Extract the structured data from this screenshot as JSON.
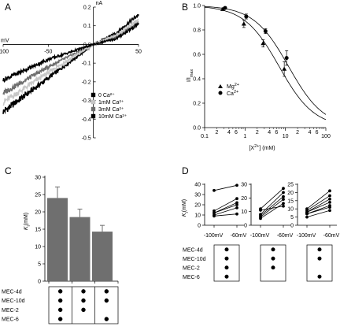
{
  "chart_data": [
    {
      "id": "A",
      "type": "line",
      "panel_label": "A",
      "x_unit": "mV",
      "y_unit": "nA",
      "xlim": [
        -100,
        50
      ],
      "ylim": [
        -0.5,
        0.2
      ],
      "x_ticks": [
        -100,
        -50,
        0,
        50
      ],
      "x_tick_labels": [
        "-100",
        "-50",
        "",
        "50"
      ],
      "y_ticks": [
        0.2,
        0.1,
        0.0,
        -0.1,
        -0.2,
        -0.3,
        -0.4,
        -0.5
      ],
      "y_tick_labels": [
        "0.2",
        "0.1",
        "0.0",
        "-0.1",
        "-0.2",
        "-0.3",
        "-0.4",
        "-0.5"
      ],
      "series": [
        {
          "name": "0 Ca²⁺",
          "color": "#000000",
          "x": [
            -100,
            -50,
            0,
            25,
            50
          ],
          "y": [
            -0.36,
            -0.18,
            0.0,
            0.06,
            0.16
          ]
        },
        {
          "name": "1mM Ca²⁺",
          "color": "#c8c8c8",
          "x": [
            -100,
            -50,
            0,
            25,
            50
          ],
          "y": [
            -0.31,
            -0.15,
            0.0,
            0.05,
            0.13
          ]
        },
        {
          "name": "3mM Ca²⁺",
          "color": "#6e6e6e",
          "x": [
            -100,
            -50,
            0,
            25,
            50
          ],
          "y": [
            -0.26,
            -0.12,
            0.0,
            0.04,
            0.12
          ]
        },
        {
          "name": "10mM Ca²⁺",
          "color": "#000000",
          "x": [
            -100,
            -50,
            0,
            25,
            50
          ],
          "y": [
            -0.19,
            -0.08,
            0.0,
            0.03,
            0.11
          ]
        }
      ]
    },
    {
      "id": "B",
      "type": "scatter",
      "panel_label": "B",
      "ylabel": "I/I",
      "ylabel_sub": "max",
      "xlabel_pre": "[X",
      "xlabel_sup": "2+",
      "xlabel_post": "] (mM)",
      "xscale": "log",
      "xlim": [
        0.1,
        100
      ],
      "ylim": [
        0,
        1.0
      ],
      "x_ticks": [
        0.1,
        1,
        10,
        100
      ],
      "x_tick_labels": [
        "0.1",
        "1",
        "10",
        "100"
      ],
      "minor_tick_labels": [
        {
          "x": 0.2,
          "t": "2"
        },
        {
          "x": 0.4,
          "t": "4"
        },
        {
          "x": 0.6,
          "t": "6"
        },
        {
          "x": 2,
          "t": "2"
        },
        {
          "x": 4,
          "t": "4"
        },
        {
          "x": 6,
          "t": "6"
        },
        {
          "x": 20,
          "t": "2"
        },
        {
          "x": 40,
          "t": "4"
        },
        {
          "x": 60,
          "t": "6"
        }
      ],
      "y_ticks": [
        0,
        0.2,
        0.4,
        0.6,
        0.8,
        1.0
      ],
      "y_tick_labels": [
        "0.0",
        "0.2",
        "0.4",
        "0.6",
        "0.8",
        "1.0"
      ],
      "fits": [
        {
          "ic50": 7,
          "n": 1
        },
        {
          "ic50": 12,
          "n": 1
        }
      ],
      "series": [
        {
          "name": "Mg",
          "sup": "2+",
          "marker": "triangle",
          "x": [
            0.3,
            1,
            3,
            10
          ],
          "y": [
            0.97,
            0.85,
            0.69,
            0.48
          ],
          "err": [
            0.01,
            0.03,
            0.03,
            0.06
          ]
        },
        {
          "name": "Ca",
          "sup": "2+",
          "marker": "circle",
          "x": [
            0.3,
            1,
            3,
            10
          ],
          "y": [
            0.98,
            0.91,
            0.79,
            0.57
          ],
          "err": [
            0.01,
            0.02,
            0.02,
            0.06
          ]
        }
      ]
    },
    {
      "id": "C",
      "type": "bar",
      "panel_label": "C",
      "ylabel": "K",
      "ylabel_sub": "i",
      "ylabel_unit": "(mM)",
      "ylim": [
        0,
        30
      ],
      "y_ticks": [
        0,
        5,
        10,
        15,
        20,
        25,
        30
      ],
      "y_tick_labels": [
        "0",
        "5",
        "10",
        "15",
        "20",
        "25",
        "30"
      ],
      "values": [
        24,
        18.5,
        14.3
      ],
      "err": [
        3.2,
        2.3,
        1.8
      ],
      "bar_color": "#6f6f6f",
      "subunit_labels": [
        "MEC-4d",
        "MEC-10d",
        "MEC-2",
        "MEC-6"
      ],
      "matrix": [
        [
          1,
          1,
          1
        ],
        [
          1,
          1,
          1
        ],
        [
          1,
          1,
          0
        ],
        [
          1,
          0,
          1
        ]
      ]
    },
    {
      "id": "D",
      "type": "line",
      "panel_label": "D",
      "ylabel": "K",
      "ylabel_sub": "i",
      "ylabel_unit": "(mM)",
      "categories": [
        "-100mV",
        "-60mV"
      ],
      "subunit_labels": [
        "MEC-4d",
        "MEC-10d",
        "MEC-2",
        "MEC-6"
      ],
      "panels": [
        {
          "ylim": [
            0,
            40
          ],
          "y_ticks": [
            0,
            10,
            20,
            30,
            40
          ],
          "y_tick_labels": [
            "0",
            "10",
            "20",
            "30",
            "40"
          ],
          "lines": [
            [
              34,
              39
            ],
            [
              14,
              26
            ],
            [
              12,
              22
            ],
            [
              12,
              20
            ],
            [
              10,
              17
            ],
            [
              9,
              11
            ]
          ],
          "matrix": [
            1,
            1,
            1,
            1
          ]
        },
        {
          "ylim": [
            0,
            30
          ],
          "y_ticks": [
            0,
            10,
            20,
            30
          ],
          "y_tick_labels": [
            "0",
            "10",
            "20",
            "30"
          ],
          "lines": [
            [
              12,
              27
            ],
            [
              8,
              24
            ],
            [
              7,
              21
            ],
            [
              6,
              19
            ],
            [
              5,
              16
            ],
            [
              11,
              14
            ]
          ],
          "matrix": [
            1,
            1,
            1,
            0
          ]
        },
        {
          "ylim": [
            0,
            25
          ],
          "y_ticks": [
            0,
            5,
            10,
            15,
            20,
            25
          ],
          "y_tick_labels": [
            "0",
            "5",
            "10",
            "15",
            "20",
            "25"
          ],
          "lines": [
            [
              10,
              21
            ],
            [
              9,
              18
            ],
            [
              8,
              16
            ],
            [
              8,
              14
            ],
            [
              7,
              12
            ],
            [
              7,
              11
            ],
            [
              5,
              9
            ]
          ],
          "matrix": [
            1,
            1,
            0,
            1
          ]
        }
      ]
    }
  ]
}
